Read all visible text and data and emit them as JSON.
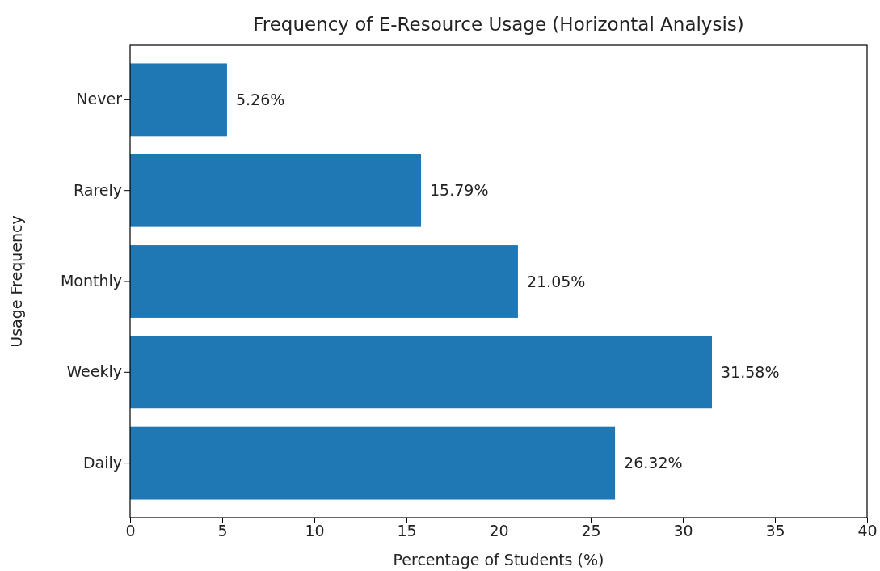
{
  "chart_data": {
    "type": "bar",
    "orientation": "horizontal",
    "title": "Frequency of E-Resource Usage (Horizontal Analysis)",
    "xlabel": "Percentage of Students (%)",
    "ylabel": "Usage Frequency",
    "categories": [
      "Never",
      "Rarely",
      "Monthly",
      "Weekly",
      "Daily"
    ],
    "values": [
      5.26,
      15.79,
      21.05,
      31.58,
      26.32
    ],
    "value_labels": [
      "5.26%",
      "15.79%",
      "21.05%",
      "31.58%",
      "26.32%"
    ],
    "color": "#1f77b4",
    "xlim": [
      0,
      40
    ],
    "xticks": [
      0,
      5,
      10,
      15,
      20,
      25,
      30,
      35,
      40
    ]
  }
}
